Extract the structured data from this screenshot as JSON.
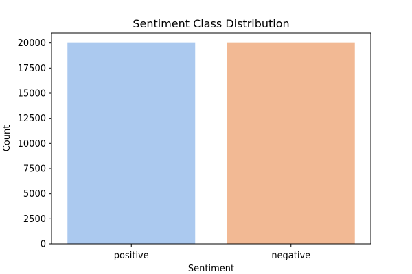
{
  "chart_data": {
    "type": "bar",
    "title": "Sentiment Class Distribution",
    "xlabel": "Sentiment",
    "ylabel": "Count",
    "categories": [
      "positive",
      "negative"
    ],
    "values": [
      20000,
      20000
    ],
    "colors": [
      "#abc9ef",
      "#f2b994"
    ],
    "ylim": [
      0,
      21000
    ],
    "yticks": [
      0,
      2500,
      5000,
      7500,
      10000,
      12500,
      15000,
      17500,
      20000
    ],
    "grid": false,
    "legend": "none"
  }
}
